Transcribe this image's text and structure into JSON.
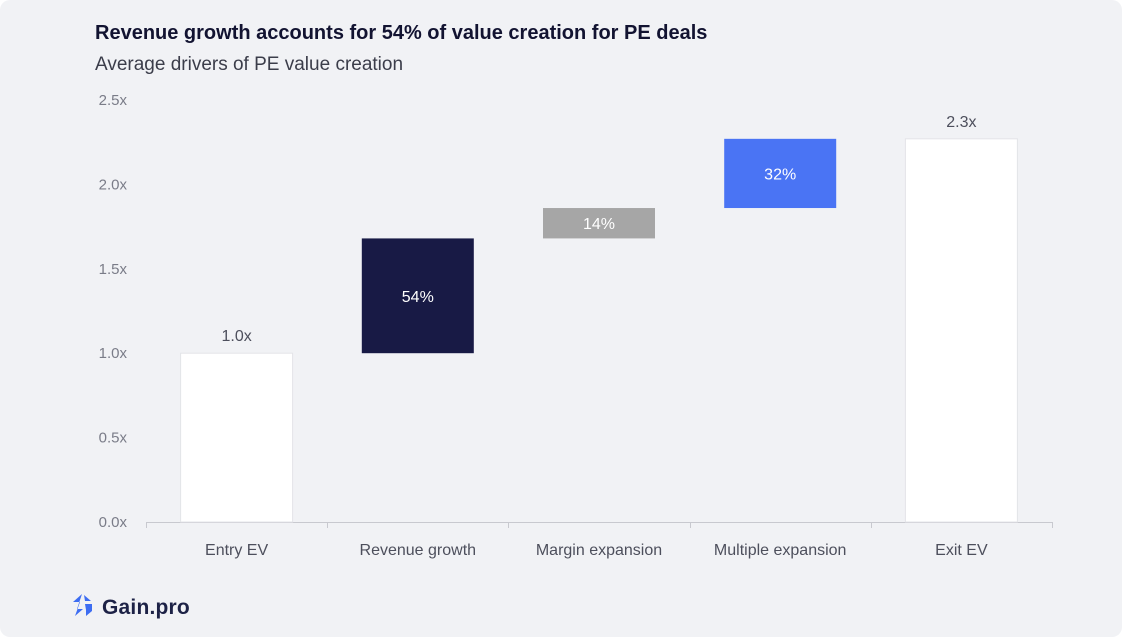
{
  "header": {
    "title": "Revenue growth accounts for 54% of value creation for PE deals",
    "subtitle": "Average drivers of PE value creation"
  },
  "brand": {
    "name": "Gain.pro",
    "icon": "gain-pro-logo-icon"
  },
  "colors": {
    "background": "#f1f2f5",
    "total_bar": "#ffffff",
    "revenue_growth": "#181a45",
    "margin_expansion": "#a6a6a6",
    "multiple_expansion": "#4a74f4",
    "axis_text": "#7a7c88",
    "category_text": "#4d4f5c",
    "logo_blue": "#3d6df2"
  },
  "chart_data": {
    "type": "waterfall",
    "title": "Revenue growth accounts for 54% of value creation for PE deals",
    "subtitle": "Average drivers of PE value creation",
    "categories": [
      "Entry EV",
      "Revenue growth",
      "Margin expansion",
      "Multiple expansion",
      "Exit EV"
    ],
    "bars": [
      {
        "category": "Entry EV",
        "kind": "total",
        "start": 0,
        "end": 1.0,
        "label": "1.0x"
      },
      {
        "category": "Revenue growth",
        "kind": "step",
        "start": 1.0,
        "end": 1.68,
        "label": "54%"
      },
      {
        "category": "Margin expansion",
        "kind": "step",
        "start": 1.68,
        "end": 1.86,
        "label": "14%"
      },
      {
        "category": "Multiple expansion",
        "kind": "step",
        "start": 1.86,
        "end": 2.27,
        "label": "32%"
      },
      {
        "category": "Exit EV",
        "kind": "total",
        "start": 0,
        "end": 2.27,
        "label": "2.3x"
      }
    ],
    "y_ticks": [
      "0.0x",
      "0.5x",
      "1.0x",
      "1.5x",
      "2.0x",
      "2.5x"
    ],
    "y_tick_values": [
      0,
      0.5,
      1.0,
      1.5,
      2.0,
      2.5
    ],
    "ylim": [
      0,
      2.5
    ],
    "grid": false,
    "legend": "none"
  }
}
